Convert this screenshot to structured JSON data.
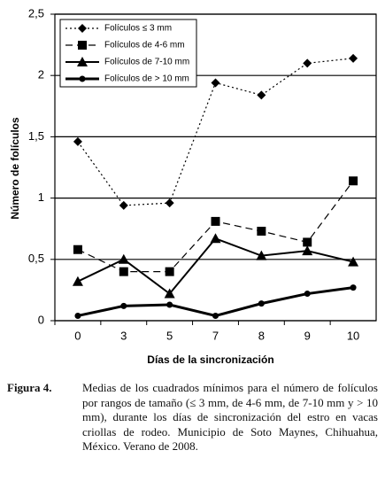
{
  "chart_data": {
    "type": "line",
    "y_label": "Número de folículos",
    "x_label": "Días de la sincronización",
    "categories": [
      "0",
      "3",
      "5",
      "7",
      "8",
      "9",
      "10"
    ],
    "ylim": [
      0,
      2.5
    ],
    "yticks": [
      0,
      {
        "value": 0.5,
        "label": "0,5"
      },
      1,
      {
        "value": 1.5,
        "label": "1,5"
      },
      2,
      {
        "value": 2.5,
        "label": "2,5"
      }
    ],
    "grid": true,
    "legend": "upper left",
    "series": [
      {
        "name": "Folículos ≤ 3 mm",
        "color": "#000000",
        "marker": "diamond",
        "dash": "2,3",
        "width": 1.2,
        "values": [
          1.46,
          0.94,
          0.96,
          1.94,
          1.84,
          2.1,
          2.14
        ]
      },
      {
        "name": "Folículos de 4-6 mm",
        "color": "#000000",
        "marker": "square",
        "dash": "8,5",
        "width": 1.2,
        "values": [
          0.58,
          0.4,
          0.4,
          0.81,
          0.73,
          0.64,
          1.14
        ]
      },
      {
        "name": "Folículos de 7-10 mm",
        "color": "#000000",
        "marker": "triangle",
        "dash": "none",
        "width": 2,
        "values": [
          0.32,
          0.5,
          0.22,
          0.67,
          0.53,
          0.57,
          0.48
        ]
      },
      {
        "name": "Folículos de > 10 mm",
        "color": "#000000",
        "marker": "circle",
        "dash": "none",
        "width": 3,
        "values": [
          0.04,
          0.12,
          0.13,
          0.04,
          0.14,
          0.22,
          0.27
        ]
      }
    ]
  },
  "caption": {
    "label": "Figura 4.",
    "text": "Medias de los cuadrados mínimos para el número de folículos por rangos de tamaño (≤ 3 mm, de 4-6 mm, de 7-10 mm y > 10 mm), durante los días de sincronización del estro en vacas criollas de rodeo. Municipio de Soto Maynes, Chihuahua, México. Verano de 2008."
  }
}
